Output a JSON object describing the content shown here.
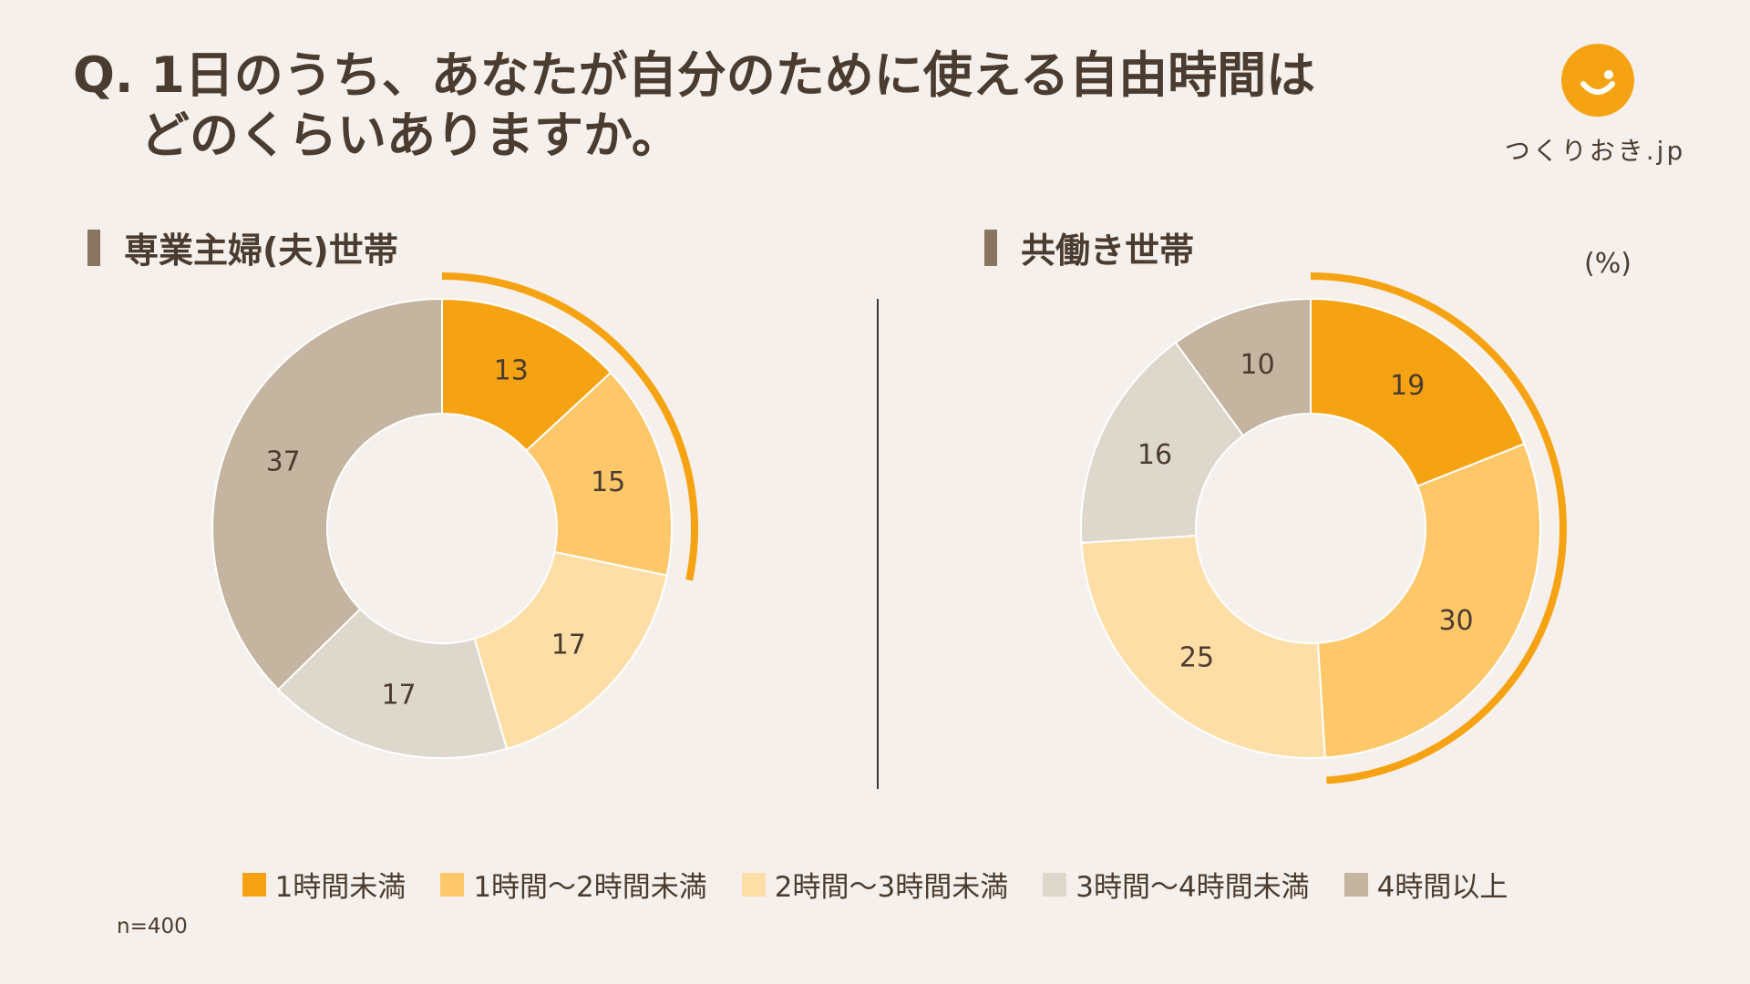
{
  "question": {
    "line1": "Q. 1日のうち、あなたが自分のために使える自由時間は",
    "line2": "どのくらいありますか。"
  },
  "logo": {
    "text": "つくりおき.jp"
  },
  "unit_label": "(%)",
  "sample_size": "n=400",
  "colors": {
    "background": "#f5f0eb",
    "highlight_arc": "#f6a313",
    "categories": [
      "#f6a313",
      "#fdc76a",
      "#fddea6",
      "#ded7cc",
      "#c4b4a0"
    ]
  },
  "chart_data": [
    {
      "type": "pie",
      "title": "専業主婦(夫)世帯",
      "categories": [
        "1時間未満",
        "1時間〜2時間未満",
        "2時間〜3時間未満",
        "3時間〜4時間未満",
        "4時間以上"
      ],
      "values": [
        13,
        15,
        17,
        17,
        37
      ],
      "unit": "%",
      "highlighted_categories": [
        0,
        1
      ]
    },
    {
      "type": "pie",
      "title": "共働き世帯",
      "categories": [
        "1時間未満",
        "1時間〜2時間未満",
        "2時間〜3時間未満",
        "3時間〜4時間未満",
        "4時間以上"
      ],
      "values": [
        19,
        30,
        25,
        16,
        10
      ],
      "unit": "%",
      "highlighted_categories": [
        0,
        1
      ]
    }
  ],
  "legend": [
    {
      "label": "1時間未満"
    },
    {
      "label": "1時間〜2時間未満"
    },
    {
      "label": "2時間〜3時間未満"
    },
    {
      "label": "3時間〜4時間未満"
    },
    {
      "label": "4時間以上"
    }
  ]
}
